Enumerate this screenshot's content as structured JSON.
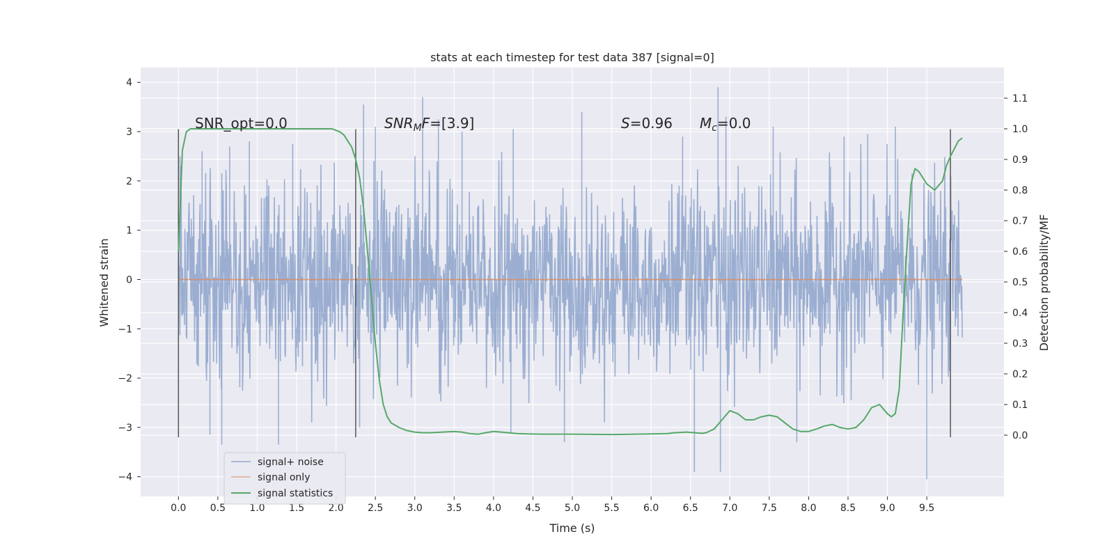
{
  "chart_data": {
    "type": "line",
    "title": "stats at each timestep for test data 387 [signal=0]",
    "xlabel": "Time (s)",
    "ylabel_left": "Whitened strain",
    "ylabel_right": "Detection probability/MF",
    "xlim": [
      -0.48,
      10.48
    ],
    "ylim_left": [
      -4.4,
      4.3
    ],
    "ylim_right": [
      -0.2,
      1.2
    ],
    "x_ticks": [
      "0.0",
      "0.5",
      "1.0",
      "1.5",
      "2.0",
      "2.5",
      "3.0",
      "3.5",
      "4.0",
      "4.5",
      "5.0",
      "5.5",
      "6.0",
      "6.5",
      "7.0",
      "7.5",
      "8.0",
      "8.5",
      "9.0",
      "9.5"
    ],
    "y_left_ticks": [
      "4",
      "3",
      "2",
      "1",
      "0",
      "−1",
      "−2",
      "−3",
      "−4"
    ],
    "y_right_ticks": [
      "1.1",
      "1.0",
      "0.9",
      "0.8",
      "0.7",
      "0.6",
      "0.5",
      "0.4",
      "0.3",
      "0.2",
      "0.1",
      "0.0"
    ],
    "grid": true,
    "legend_position": "lower-left",
    "legend": [
      "signal+ noise",
      "signal only",
      "signal statistics"
    ],
    "colors": {
      "noise": "#4c72b0",
      "signal_only": "#dd8452",
      "statistics": "#55a868",
      "background": "#eaeaf2",
      "vline": "#555555"
    },
    "annotations": {
      "snr_opt": "SNR_opt=0.0",
      "snr_mf": "SNR",
      "snr_mf_sub": "M",
      "snr_mf_mid": "F",
      "snr_mf_val": "=[3.9]",
      "s": "S",
      "s_val": "=0.96",
      "mc": "M",
      "mc_sub": "c",
      "mc_val": "=0.0"
    },
    "vertical_lines_x": [
      0.0,
      2.25,
      9.8
    ],
    "vertical_lines_range_left": [
      -3.2,
      3.05
    ],
    "series": [
      {
        "name": "signal+ noise",
        "x_range": [
          0.0,
          9.95
        ],
        "envelope_upper_typ": 2.2,
        "envelope_lower_typ": -2.0,
        "peaks": [
          [
            0.02,
            2.5
          ],
          [
            0.3,
            2.6
          ],
          [
            0.65,
            2.7
          ],
          [
            0.9,
            2.8
          ],
          [
            1.45,
            2.75
          ],
          [
            2.35,
            3.55
          ],
          [
            2.5,
            3.1
          ],
          [
            3.1,
            3.7
          ],
          [
            3.3,
            3.25
          ],
          [
            3.6,
            3.0
          ],
          [
            4.25,
            3.05
          ],
          [
            5.12,
            3.4
          ],
          [
            6.4,
            2.9
          ],
          [
            6.85,
            3.9
          ],
          [
            6.95,
            3.3
          ],
          [
            7.55,
            3.1
          ],
          [
            8.45,
            2.9
          ],
          [
            8.75,
            2.95
          ],
          [
            9.1,
            3.1
          ]
        ],
        "troughs": [
          [
            0.4,
            -3.15
          ],
          [
            0.55,
            -3.35
          ],
          [
            1.27,
            -3.35
          ],
          [
            2.3,
            -3.0
          ],
          [
            4.22,
            -3.1
          ],
          [
            4.9,
            -3.3
          ],
          [
            6.55,
            -3.9
          ],
          [
            6.88,
            -3.9
          ],
          [
            7.85,
            -3.3
          ],
          [
            9.5,
            -4.05
          ]
        ]
      },
      {
        "name": "signal only",
        "x": [
          0.0,
          9.95
        ],
        "y": [
          0.0,
          0.0
        ]
      },
      {
        "name": "signal statistics",
        "axis": "right",
        "x": [
          0.0,
          0.05,
          0.1,
          0.15,
          0.2,
          0.3,
          0.5,
          1.0,
          1.5,
          1.8,
          1.95,
          2.0,
          2.05,
          2.1,
          2.15,
          2.2,
          2.25,
          2.3,
          2.35,
          2.4,
          2.45,
          2.5,
          2.55,
          2.6,
          2.65,
          2.7,
          2.8,
          2.9,
          3.0,
          3.1,
          3.2,
          3.35,
          3.5,
          3.6,
          3.7,
          3.8,
          3.9,
          4.0,
          4.1,
          4.3,
          4.6,
          5.0,
          5.5,
          5.8,
          6.0,
          6.2,
          6.3,
          6.45,
          6.55,
          6.65,
          6.7,
          6.8,
          6.9,
          7.0,
          7.1,
          7.2,
          7.3,
          7.4,
          7.5,
          7.6,
          7.7,
          7.8,
          7.9,
          8.0,
          8.1,
          8.2,
          8.3,
          8.4,
          8.5,
          8.6,
          8.7,
          8.8,
          8.9,
          9.0,
          9.05,
          9.1,
          9.15,
          9.2,
          9.25,
          9.3,
          9.35,
          9.4,
          9.5,
          9.6,
          9.7,
          9.75,
          9.8,
          9.9,
          9.95
        ],
        "y": [
          0.6,
          0.93,
          0.99,
          1.0,
          1.0,
          1.0,
          1.0,
          1.0,
          1.0,
          1.0,
          1.0,
          0.995,
          0.99,
          0.98,
          0.96,
          0.94,
          0.9,
          0.84,
          0.74,
          0.6,
          0.45,
          0.3,
          0.18,
          0.1,
          0.06,
          0.04,
          0.025,
          0.015,
          0.01,
          0.008,
          0.008,
          0.01,
          0.012,
          0.01,
          0.005,
          0.003,
          0.008,
          0.012,
          0.01,
          0.005,
          0.003,
          0.003,
          0.002,
          0.003,
          0.004,
          0.005,
          0.008,
          0.01,
          0.008,
          0.006,
          0.008,
          0.02,
          0.05,
          0.08,
          0.07,
          0.05,
          0.05,
          0.06,
          0.065,
          0.06,
          0.04,
          0.02,
          0.012,
          0.012,
          0.02,
          0.03,
          0.035,
          0.025,
          0.02,
          0.025,
          0.05,
          0.09,
          0.1,
          0.07,
          0.06,
          0.07,
          0.15,
          0.4,
          0.62,
          0.82,
          0.87,
          0.86,
          0.82,
          0.8,
          0.83,
          0.88,
          0.91,
          0.96,
          0.97
        ]
      }
    ]
  }
}
